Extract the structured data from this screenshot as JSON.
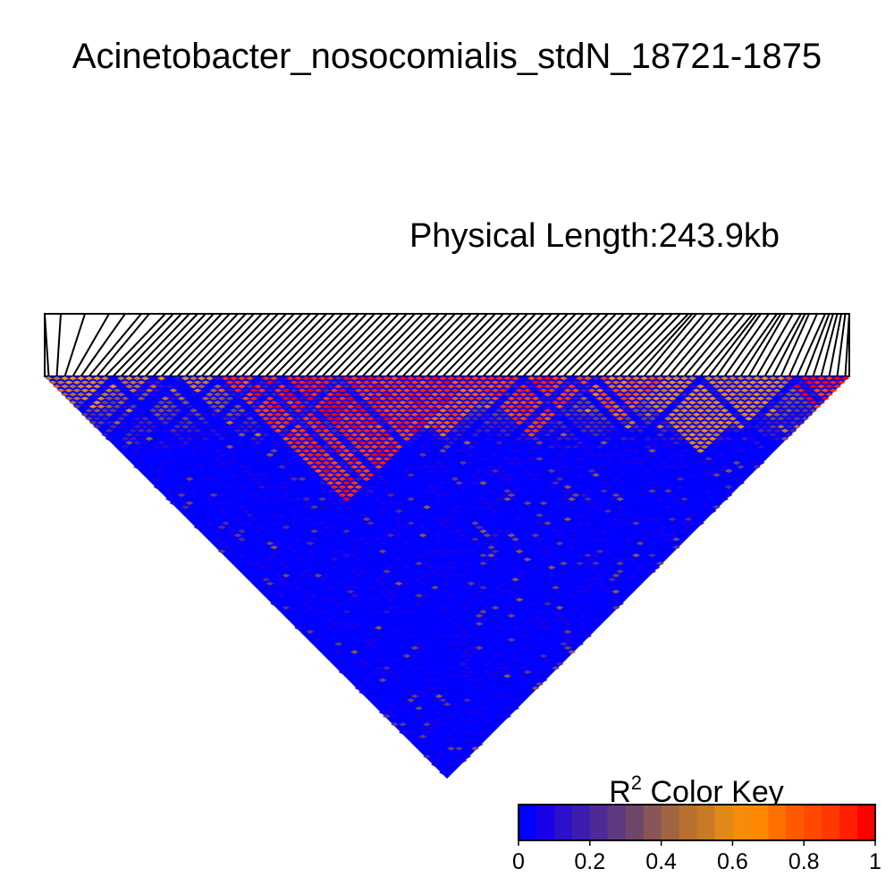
{
  "chart_data": {
    "type": "heatmap",
    "title": "Acinetobacter_nosocomialis_stdN_18721-1875",
    "subtitle": "Physical Length:243.9kb",
    "metric": "R2",
    "color_key": {
      "label_main": "R",
      "label_sup": "2",
      "label_rest": " Color Key",
      "ticks": [
        "0",
        "0.2",
        "0.4",
        "0.6",
        "0.8",
        "1"
      ],
      "range": [
        0,
        1
      ],
      "bins": 20,
      "colors": [
        "#0000ff",
        "#1a00e6",
        "#2d10c9",
        "#3d1cb0",
        "#4e2a97",
        "#5e3a80",
        "#6e466a",
        "#8a5558",
        "#a06444",
        "#b87030",
        "#c87a24",
        "#e08818",
        "#f58c0a",
        "#ff8800",
        "#ff7000",
        "#ff5a00",
        "#ff4800",
        "#ff3800",
        "#ff2000",
        "#ff0000"
      ]
    },
    "triangle_rows": 100,
    "ld_blocks": [
      {
        "start": 2,
        "end": 9,
        "r2": 0.58
      },
      {
        "start": 22,
        "end": 52,
        "r2": 0.88
      },
      {
        "start": 28,
        "end": 40,
        "r2": 0.95
      },
      {
        "start": 42,
        "end": 56,
        "r2": 0.8
      },
      {
        "start": 53,
        "end": 68,
        "r2": 0.85
      },
      {
        "start": 57,
        "end": 62,
        "r2": 0.92
      },
      {
        "start": 66,
        "end": 76,
        "r2": 0.78
      },
      {
        "start": 72,
        "end": 90,
        "r2": 0.6
      },
      {
        "start": 80,
        "end": 92,
        "r2": 0.55
      },
      {
        "start": 92,
        "end": 99,
        "r2": 0.9
      }
    ],
    "snp_fractions": [
      0.0,
      0.02,
      0.05,
      0.08,
      0.1,
      0.12,
      0.13,
      0.15,
      0.16,
      0.17,
      0.18,
      0.19,
      0.2,
      0.21,
      0.22,
      0.23,
      0.24,
      0.25,
      0.26,
      0.27,
      0.28,
      0.29,
      0.3,
      0.31,
      0.32,
      0.33,
      0.34,
      0.35,
      0.36,
      0.37,
      0.38,
      0.39,
      0.4,
      0.41,
      0.42,
      0.43,
      0.44,
      0.45,
      0.46,
      0.47,
      0.48,
      0.49,
      0.5,
      0.51,
      0.52,
      0.53,
      0.54,
      0.55,
      0.56,
      0.57,
      0.58,
      0.59,
      0.6,
      0.61,
      0.62,
      0.63,
      0.64,
      0.65,
      0.66,
      0.67,
      0.68,
      0.69,
      0.7,
      0.71,
      0.72,
      0.73,
      0.74,
      0.75,
      0.76,
      0.77,
      0.78,
      0.79,
      0.8,
      0.805,
      0.81,
      0.82,
      0.83,
      0.84,
      0.85,
      0.86,
      0.87,
      0.88,
      0.885,
      0.89,
      0.9,
      0.91,
      0.915,
      0.92,
      0.93,
      0.94,
      0.945,
      0.95,
      0.96,
      0.97,
      0.975,
      0.98,
      0.985,
      0.99,
      0.995,
      1.0
    ]
  }
}
